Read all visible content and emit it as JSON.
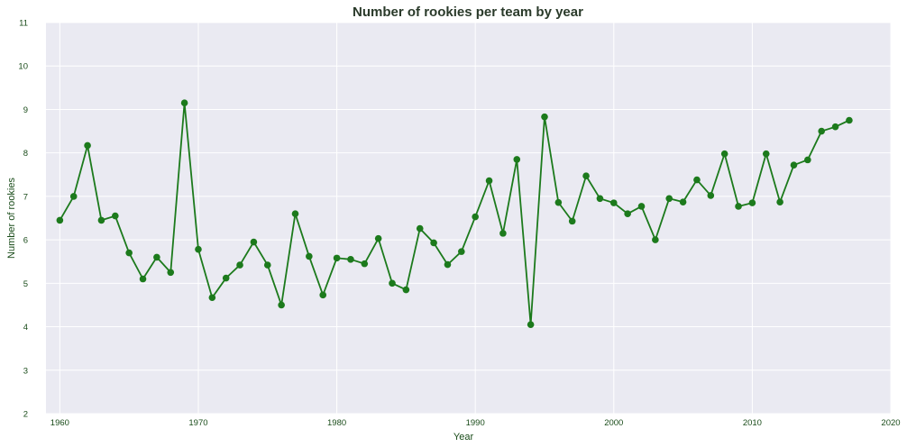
{
  "chart_data": {
    "type": "line",
    "title": "Number of rookies per team by year",
    "xlabel": "Year",
    "ylabel": "Number of rookies",
    "xlim": [
      1959,
      2020
    ],
    "ylim": [
      2,
      11
    ],
    "xticks": [
      1960,
      1970,
      1980,
      1990,
      2000,
      2010,
      2020
    ],
    "yticks": [
      2,
      3,
      4,
      5,
      6,
      7,
      8,
      9,
      10,
      11
    ],
    "grid": true,
    "legend": false,
    "series": [
      {
        "marker": "circle",
        "color": "#1c7a1c",
        "x": [
          1960,
          1961,
          1962,
          1963,
          1964,
          1965,
          1966,
          1967,
          1968,
          1969,
          1970,
          1971,
          1972,
          1973,
          1974,
          1975,
          1976,
          1977,
          1978,
          1979,
          1980,
          1981,
          1982,
          1983,
          1984,
          1985,
          1986,
          1987,
          1988,
          1989,
          1990,
          1991,
          1992,
          1993,
          1994,
          1995,
          1996,
          1997,
          1998,
          1999,
          2000,
          2001,
          2002,
          2003,
          2004,
          2005,
          2006,
          2007,
          2008,
          2009,
          2010,
          2011,
          2012,
          2013,
          2014,
          2015,
          2016,
          2017
        ],
        "y": [
          6.45,
          7.0,
          8.17,
          6.45,
          6.55,
          5.7,
          5.1,
          5.6,
          5.25,
          9.15,
          5.78,
          4.67,
          5.12,
          5.42,
          5.95,
          5.42,
          4.5,
          6.6,
          5.62,
          4.73,
          5.58,
          5.55,
          5.45,
          6.03,
          5.0,
          4.85,
          6.26,
          5.93,
          5.43,
          5.73,
          6.53,
          7.36,
          6.15,
          7.85,
          4.05,
          8.83,
          6.86,
          6.43,
          7.47,
          6.95,
          6.85,
          6.6,
          6.77,
          6.0,
          6.95,
          6.87,
          7.38,
          7.02,
          7.98,
          6.77,
          6.85,
          7.98,
          6.87,
          7.72,
          7.84,
          8.5,
          8.6,
          8.75
        ]
      }
    ]
  },
  "style": {
    "plot_bg": "#eaeaf2",
    "grid_color": "#ffffff",
    "text_color": "#1a4c1a",
    "line_color": "#1c7a1c",
    "marker_color": "#1c7a1c",
    "title_color": "#2a3a2a"
  }
}
